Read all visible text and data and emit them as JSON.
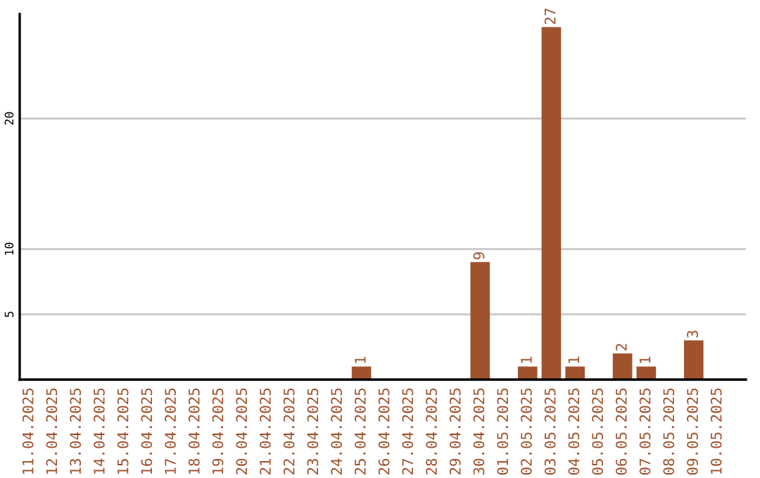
{
  "chart_data": {
    "type": "bar",
    "categories": [
      "11.04.2025",
      "12.04.2025",
      "13.04.2025",
      "14.04.2025",
      "15.04.2025",
      "16.04.2025",
      "17.04.2025",
      "18.04.2025",
      "19.04.2025",
      "20.04.2025",
      "21.04.2025",
      "22.04.2025",
      "23.04.2025",
      "24.04.2025",
      "25.04.2025",
      "26.04.2025",
      "27.04.2025",
      "28.04.2025",
      "29.04.2025",
      "30.04.2025",
      "01.05.2025",
      "02.05.2025",
      "03.05.2025",
      "04.05.2025",
      "05.05.2025",
      "06.05.2025",
      "07.05.2025",
      "08.05.2025",
      "09.05.2025",
      "10.05.2025"
    ],
    "values": [
      0,
      0,
      0,
      0,
      0,
      0,
      0,
      0,
      0,
      0,
      0,
      0,
      0,
      0,
      1,
      0,
      0,
      0,
      0,
      9,
      0,
      1,
      27,
      1,
      0,
      2,
      1,
      0,
      3,
      0
    ],
    "value_labels": [
      null,
      null,
      null,
      null,
      null,
      null,
      null,
      null,
      null,
      null,
      null,
      null,
      null,
      null,
      "1",
      null,
      null,
      null,
      null,
      "9",
      null,
      "1",
      "27",
      "1",
      null,
      "2",
      "1",
      null,
      "3",
      null
    ],
    "color": "#a0522d",
    "ylim": [
      0,
      28
    ],
    "yticks": [
      5,
      10,
      20
    ],
    "grid": "y",
    "legend": false
  }
}
